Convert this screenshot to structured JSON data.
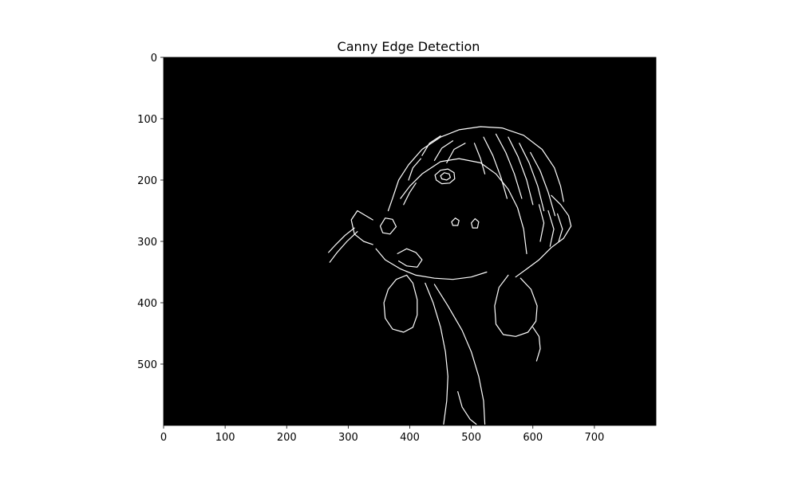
{
  "chart_data": {
    "type": "image",
    "title": "Canny Edge Detection",
    "xlabel": "",
    "ylabel": "",
    "xlim": [
      0,
      800
    ],
    "ylim": [
      600,
      0
    ],
    "x_ticks": [
      0,
      100,
      200,
      300,
      400,
      500,
      600,
      700
    ],
    "y_ticks": [
      0,
      100,
      200,
      300,
      400,
      500
    ],
    "grid": false,
    "colormap": "gray",
    "background_color": "#000000",
    "edge_color": "#ffffff",
    "edge_curves": [
      {
        "name": "head-outline",
        "points": [
          [
            365,
            250
          ],
          [
            372,
            230
          ],
          [
            382,
            200
          ],
          [
            398,
            175
          ],
          [
            420,
            150
          ],
          [
            450,
            130
          ],
          [
            480,
            118
          ],
          [
            515,
            113
          ],
          [
            550,
            115
          ],
          [
            585,
            127
          ],
          [
            615,
            150
          ],
          [
            635,
            180
          ],
          [
            645,
            210
          ],
          [
            650,
            235
          ]
        ]
      },
      {
        "name": "ear-flap-right",
        "points": [
          [
            630,
            225
          ],
          [
            645,
            240
          ],
          [
            658,
            258
          ],
          [
            662,
            275
          ],
          [
            650,
            295
          ],
          [
            630,
            310
          ],
          [
            610,
            330
          ],
          [
            590,
            345
          ],
          [
            572,
            358
          ]
        ]
      },
      {
        "name": "forehead-ridge",
        "points": [
          [
            385,
            230
          ],
          [
            400,
            210
          ],
          [
            420,
            190
          ],
          [
            450,
            170
          ],
          [
            480,
            165
          ],
          [
            515,
            172
          ],
          [
            540,
            190
          ],
          [
            560,
            215
          ],
          [
            575,
            245
          ],
          [
            585,
            280
          ],
          [
            590,
            320
          ]
        ]
      },
      {
        "name": "muzzle",
        "points": [
          [
            340,
            265
          ],
          [
            315,
            250
          ],
          [
            305,
            265
          ],
          [
            310,
            288
          ],
          [
            325,
            300
          ],
          [
            340,
            305
          ]
        ]
      },
      {
        "name": "whisker-1",
        "points": [
          [
            310,
            278
          ],
          [
            295,
            290
          ],
          [
            280,
            305
          ],
          [
            268,
            318
          ]
        ]
      },
      {
        "name": "whisker-2",
        "points": [
          [
            315,
            284
          ],
          [
            298,
            300
          ],
          [
            282,
            318
          ],
          [
            270,
            334
          ]
        ]
      },
      {
        "name": "jaw-lower",
        "points": [
          [
            345,
            312
          ],
          [
            360,
            330
          ],
          [
            385,
            345
          ],
          [
            410,
            355
          ],
          [
            440,
            360
          ],
          [
            470,
            362
          ],
          [
            500,
            358
          ],
          [
            525,
            350
          ]
        ]
      },
      {
        "name": "throat-left",
        "points": [
          [
            425,
            368
          ],
          [
            438,
            400
          ],
          [
            450,
            440
          ],
          [
            458,
            480
          ],
          [
            462,
            520
          ],
          [
            460,
            560
          ],
          [
            455,
            598
          ]
        ]
      },
      {
        "name": "throat-right",
        "points": [
          [
            440,
            370
          ],
          [
            462,
            405
          ],
          [
            485,
            445
          ],
          [
            500,
            480
          ],
          [
            512,
            520
          ],
          [
            520,
            560
          ],
          [
            522,
            598
          ]
        ]
      },
      {
        "name": "ear-left",
        "points": [
          [
            395,
            355
          ],
          [
            378,
            362
          ],
          [
            365,
            378
          ],
          [
            358,
            400
          ],
          [
            360,
            425
          ],
          [
            372,
            443
          ],
          [
            390,
            448
          ],
          [
            405,
            440
          ],
          [
            412,
            420
          ],
          [
            412,
            395
          ],
          [
            405,
            368
          ],
          [
            395,
            355
          ]
        ]
      },
      {
        "name": "ear-right",
        "points": [
          [
            560,
            355
          ],
          [
            545,
            375
          ],
          [
            538,
            405
          ],
          [
            540,
            435
          ],
          [
            552,
            452
          ],
          [
            572,
            455
          ],
          [
            592,
            448
          ],
          [
            605,
            430
          ],
          [
            607,
            405
          ],
          [
            597,
            378
          ],
          [
            580,
            360
          ]
        ]
      },
      {
        "name": "ear-right-tip",
        "points": [
          [
            600,
            440
          ],
          [
            610,
            455
          ],
          [
            612,
            475
          ],
          [
            606,
            495
          ]
        ]
      },
      {
        "name": "neck-detail",
        "points": [
          [
            478,
            545
          ],
          [
            485,
            570
          ],
          [
            498,
            590
          ],
          [
            508,
            598
          ]
        ]
      },
      {
        "name": "eye-outer",
        "points": [
          [
            441,
            192
          ],
          [
            450,
            184
          ],
          [
            462,
            182
          ],
          [
            472,
            188
          ],
          [
            473,
            198
          ],
          [
            465,
            205
          ],
          [
            452,
            206
          ],
          [
            443,
            200
          ],
          [
            441,
            192
          ]
        ]
      },
      {
        "name": "eye-inner",
        "points": [
          [
            450,
            193
          ],
          [
            456,
            188
          ],
          [
            464,
            190
          ],
          [
            466,
            196
          ],
          [
            460,
            200
          ],
          [
            452,
            198
          ],
          [
            450,
            193
          ]
        ]
      },
      {
        "name": "cheek-spot-1",
        "points": [
          [
            468,
            268
          ],
          [
            474,
            262
          ],
          [
            480,
            266
          ],
          [
            478,
            274
          ],
          [
            470,
            274
          ],
          [
            468,
            268
          ]
        ]
      },
      {
        "name": "cheek-spot-2",
        "points": [
          [
            500,
            270
          ],
          [
            506,
            263
          ],
          [
            512,
            268
          ],
          [
            510,
            278
          ],
          [
            502,
            278
          ],
          [
            500,
            270
          ]
        ]
      },
      {
        "name": "snout-spot",
        "points": [
          [
            352,
            275
          ],
          [
            360,
            262
          ],
          [
            372,
            264
          ],
          [
            378,
            276
          ],
          [
            368,
            288
          ],
          [
            356,
            286
          ],
          [
            352,
            275
          ]
        ]
      },
      {
        "name": "collar-patch",
        "points": [
          [
            380,
            320
          ],
          [
            395,
            312
          ],
          [
            410,
            318
          ],
          [
            420,
            330
          ],
          [
            412,
            342
          ],
          [
            395,
            340
          ],
          [
            382,
            332
          ]
        ]
      },
      {
        "name": "fur-1",
        "points": [
          [
            520,
            130
          ],
          [
            535,
            160
          ],
          [
            548,
            195
          ],
          [
            558,
            230
          ]
        ]
      },
      {
        "name": "fur-2",
        "points": [
          [
            540,
            125
          ],
          [
            556,
            155
          ],
          [
            570,
            190
          ],
          [
            582,
            230
          ]
        ]
      },
      {
        "name": "fur-3",
        "points": [
          [
            560,
            130
          ],
          [
            576,
            162
          ],
          [
            590,
            200
          ],
          [
            600,
            240
          ]
        ]
      },
      {
        "name": "fur-4",
        "points": [
          [
            578,
            140
          ],
          [
            594,
            172
          ],
          [
            608,
            210
          ],
          [
            618,
            250
          ]
        ]
      },
      {
        "name": "fur-5",
        "points": [
          [
            596,
            155
          ],
          [
            612,
            185
          ],
          [
            625,
            220
          ],
          [
            636,
            258
          ]
        ]
      },
      {
        "name": "fur-6",
        "points": [
          [
            610,
            240
          ],
          [
            618,
            270
          ],
          [
            612,
            300
          ]
        ]
      },
      {
        "name": "fur-7",
        "points": [
          [
            625,
            250
          ],
          [
            634,
            280
          ],
          [
            628,
            308
          ]
        ]
      },
      {
        "name": "fur-8",
        "points": [
          [
            640,
            255
          ],
          [
            648,
            280
          ],
          [
            642,
            300
          ]
        ]
      },
      {
        "name": "fur-9",
        "points": [
          [
            420,
            160
          ],
          [
            432,
            140
          ],
          [
            450,
            128
          ]
        ]
      },
      {
        "name": "fur-10",
        "points": [
          [
            440,
            168
          ],
          [
            452,
            148
          ],
          [
            470,
            136
          ]
        ]
      },
      {
        "name": "fur-11",
        "points": [
          [
            460,
            172
          ],
          [
            472,
            150
          ],
          [
            490,
            140
          ]
        ]
      },
      {
        "name": "fur-12",
        "points": [
          [
            398,
            200
          ],
          [
            405,
            180
          ],
          [
            418,
            165
          ]
        ]
      },
      {
        "name": "fur-13",
        "points": [
          [
            505,
            140
          ],
          [
            515,
            165
          ],
          [
            522,
            190
          ]
        ]
      },
      {
        "name": "fur-14",
        "points": [
          [
            390,
            240
          ],
          [
            400,
            220
          ],
          [
            410,
            205
          ]
        ]
      }
    ]
  }
}
